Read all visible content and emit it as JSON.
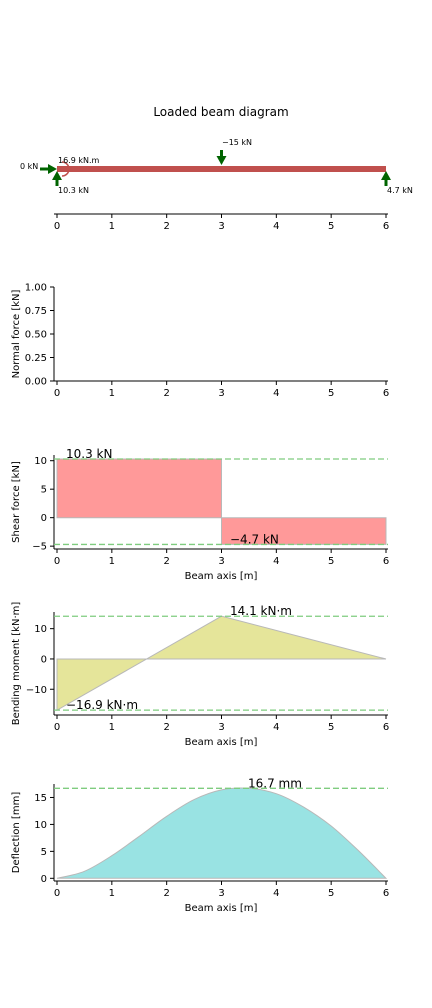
{
  "figure": {
    "title": "Loaded beam diagram"
  },
  "colors": {
    "beam": "#c0504d",
    "arrow": "#006400",
    "shear_fill": "#ff9999",
    "moment_fill": "#e5e59a",
    "deflection_fill": "#99e3e3",
    "peak_line": "#7fcc7f",
    "axis": "#000000"
  },
  "chart_data": [
    {
      "id": "beam",
      "type": "diagram",
      "title": "Loaded beam diagram",
      "xlim": [
        0,
        6
      ],
      "xticks": [
        0,
        1,
        2,
        3,
        4,
        5,
        6
      ],
      "loads": [
        {
          "kind": "point",
          "x": 0,
          "label": "0 kN",
          "direction": "horizontal"
        },
        {
          "kind": "moment",
          "x": 0,
          "label": "16.9 kN.m"
        },
        {
          "kind": "reaction",
          "x": 0,
          "label": "10.3 kN",
          "direction": "up"
        },
        {
          "kind": "point",
          "x": 3,
          "label": "−15 kN",
          "direction": "down"
        },
        {
          "kind": "reaction",
          "x": 6,
          "label": "4.7 kN",
          "direction": "up"
        }
      ]
    },
    {
      "id": "normal",
      "type": "area",
      "ylabel": "Normal force [kN]",
      "xlim": [
        0,
        6
      ],
      "ylim": [
        0,
        1
      ],
      "xticks": [
        0,
        1,
        2,
        3,
        4,
        5,
        6
      ],
      "yticks": [
        "0.00",
        "0.25",
        "0.50",
        "0.75",
        "1.00"
      ],
      "x": [
        0,
        6
      ],
      "y": [
        0,
        0
      ]
    },
    {
      "id": "shear",
      "type": "area",
      "xlabel": "Beam axis [m]",
      "ylabel": "Shear force [kN]",
      "xlim": [
        0,
        6
      ],
      "ylim": [
        -5.5,
        11
      ],
      "xticks": [
        0,
        1,
        2,
        3,
        4,
        5,
        6
      ],
      "yticks": [
        -5,
        0,
        5,
        10
      ],
      "x": [
        0,
        0,
        3,
        3,
        6,
        6
      ],
      "y": [
        0,
        10.3,
        10.3,
        -4.7,
        -4.7,
        0
      ],
      "max": {
        "value": 10.3,
        "label": "10.3 kN"
      },
      "min": {
        "value": -4.7,
        "label": "−4.7 kN"
      }
    },
    {
      "id": "moment",
      "type": "area",
      "xlabel": "Beam axis [m]",
      "ylabel": "Bending moment [kN·m]",
      "xlim": [
        0,
        6
      ],
      "ylim": [
        -18.5,
        15.5
      ],
      "xticks": [
        0,
        1,
        2,
        3,
        4,
        5,
        6
      ],
      "yticks": [
        -10,
        0,
        10
      ],
      "x": [
        0,
        0,
        3,
        6
      ],
      "y": [
        0,
        -16.9,
        14.1,
        0
      ],
      "max": {
        "value": 14.1,
        "label": "14.1 kN·m"
      },
      "min": {
        "value": -16.9,
        "label": "−16.9 kN·m"
      }
    },
    {
      "id": "deflection",
      "type": "area",
      "xlabel": "Beam axis [m]",
      "ylabel": "Deflection [mm]",
      "xlim": [
        0,
        6
      ],
      "ylim": [
        -0.5,
        17.5
      ],
      "xticks": [
        0,
        1,
        2,
        3,
        4,
        5,
        6
      ],
      "yticks": [
        0,
        5,
        10,
        15
      ],
      "x": [
        0,
        0.5,
        1,
        1.5,
        2,
        2.5,
        3,
        3.5,
        4,
        4.5,
        5,
        5.5,
        6
      ],
      "y": [
        0,
        1.3,
        4.2,
        7.8,
        11.5,
        14.6,
        16.4,
        16.7,
        15.7,
        13.2,
        9.7,
        5.1,
        0
      ],
      "max": {
        "value": 16.7,
        "label": "16.7 mm"
      }
    }
  ]
}
